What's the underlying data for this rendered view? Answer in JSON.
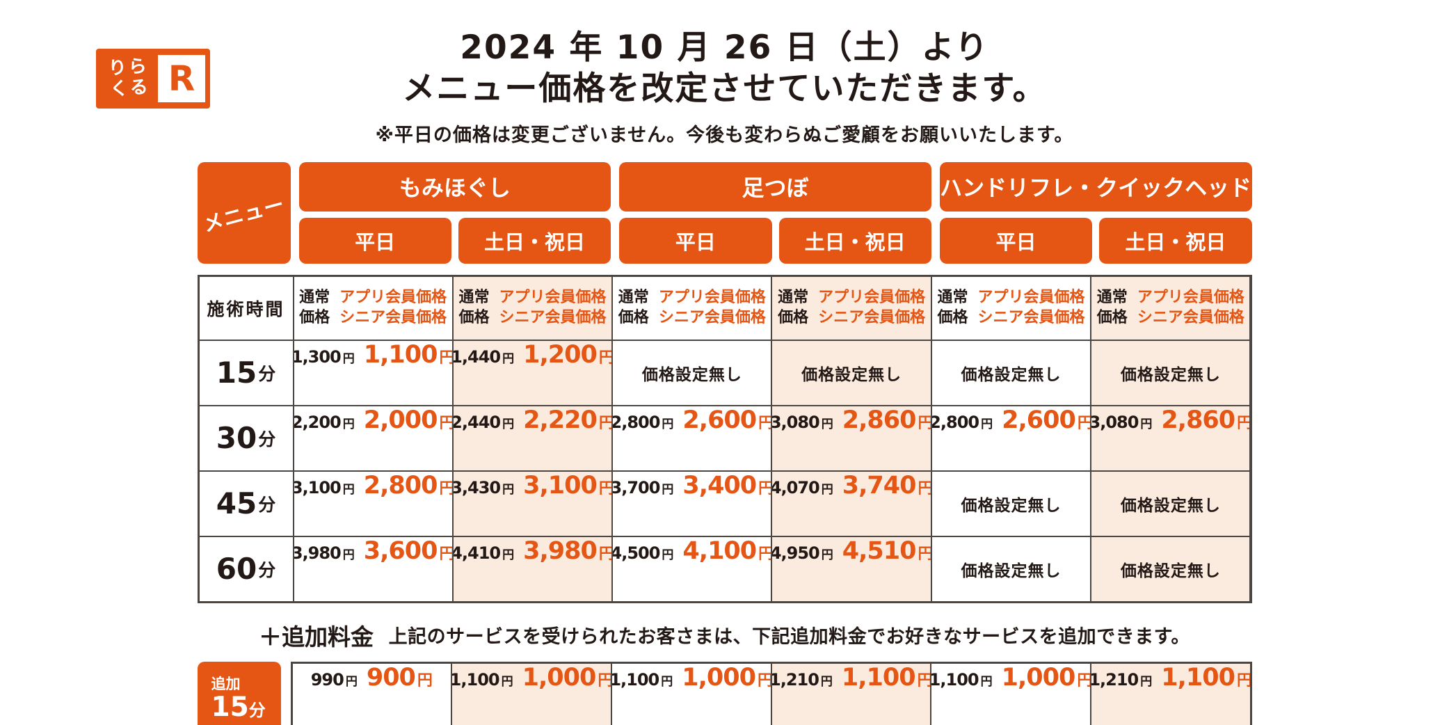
{
  "colors": {
    "accent": "#e55513",
    "peach_bg": "#fbeade",
    "border": "#4c4643",
    "text": "#221815"
  },
  "logo": {
    "line1": "りら",
    "line2": "くる",
    "r": "R"
  },
  "header": {
    "title_line1": "2024 年 10 月 26 日（土）より",
    "title_line2": "メニュー価格を改定させていただきます。",
    "note": "※平日の価格は変更ございません。今後も変わらぬご愛顧をお願いいたします。"
  },
  "labels": {
    "menu": "メニュー",
    "weekday": "平日",
    "weekend": "土日・祝日",
    "time_header": "施術時間",
    "normal_l1": "通常",
    "normal_l2": "価格",
    "member_l1": "アプリ会員価格",
    "member_l2": "シニア会員価格",
    "no_price": "価格設定無し",
    "yen": "円",
    "minutes": "分",
    "addon_prefix": "追加"
  },
  "groups": [
    {
      "name": "もみほぐし"
    },
    {
      "name": "足つぼ"
    },
    {
      "name": "ハンドリフレ・クイックヘッド"
    }
  ],
  "menu": {
    "rows": [
      {
        "time": "15",
        "cells": [
          {
            "n": "1,300",
            "m": "1,100"
          },
          {
            "n": "1,440",
            "m": "1,200"
          },
          null,
          null,
          null,
          null
        ]
      },
      {
        "time": "30",
        "cells": [
          {
            "n": "2,200",
            "m": "2,000"
          },
          {
            "n": "2,440",
            "m": "2,220"
          },
          {
            "n": "2,800",
            "m": "2,600"
          },
          {
            "n": "3,080",
            "m": "2,860"
          },
          {
            "n": "2,800",
            "m": "2,600"
          },
          {
            "n": "3,080",
            "m": "2,860"
          }
        ]
      },
      {
        "time": "45",
        "cells": [
          {
            "n": "3,100",
            "m": "2,800"
          },
          {
            "n": "3,430",
            "m": "3,100"
          },
          {
            "n": "3,700",
            "m": "3,400"
          },
          {
            "n": "4,070",
            "m": "3,740"
          },
          null,
          null
        ]
      },
      {
        "time": "60",
        "cells": [
          {
            "n": "3,980",
            "m": "3,600"
          },
          {
            "n": "4,410",
            "m": "3,980"
          },
          {
            "n": "4,500",
            "m": "4,100"
          },
          {
            "n": "4,950",
            "m": "4,510"
          },
          null,
          null
        ]
      }
    ]
  },
  "addon": {
    "heading_strong": "＋追加料金",
    "heading_rest": "上記のサービスを受けられたお客さまは、下記追加料金でお好きなサービスを追加できます。",
    "time": "15",
    "cells": [
      {
        "n": "990",
        "m": "900"
      },
      {
        "n": "1,100",
        "m": "1,000"
      },
      {
        "n": "1,100",
        "m": "1,000"
      },
      {
        "n": "1,210",
        "m": "1,100"
      },
      {
        "n": "1,100",
        "m": "1,000"
      },
      {
        "n": "1,210",
        "m": "1,100"
      }
    ]
  }
}
